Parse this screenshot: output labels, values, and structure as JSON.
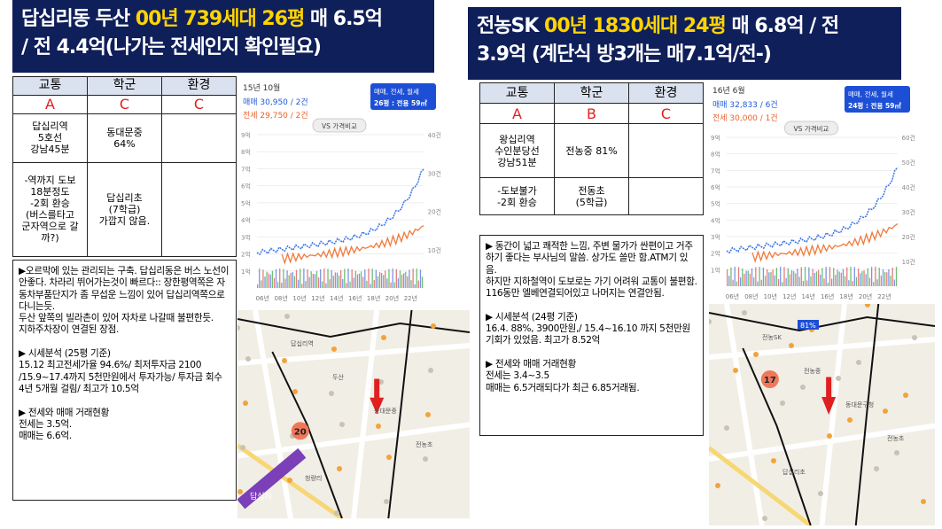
{
  "listings": [
    {
      "title": [
        "답십리동 두산 ",
        "00년 739세대 26평",
        " 매 6.5억",
        "/ 전 4.4억(나가는 전세인지 확인필요)"
      ],
      "table": {
        "headers": [
          "교통",
          "학군",
          "환경"
        ],
        "grades": [
          "A",
          "C",
          "C"
        ],
        "rows": [
          [
            "답십리역\n5호선\n강남45분",
            "동대문중\n64%",
            null
          ],
          [
            "-역까지 도보\n18분정도\n-2회 환승\n(버스를타고\n군자역으로 갈\n까?)",
            "답십리초\n(7학급)\n가깝지 않음.",
            null
          ]
        ]
      },
      "notes": "▶오르막에 있는 관리되는 구축. 답십리동은 버스 노선이 안좋다. 차라리 뛰어가는것이 빠르다:: 장한평역쪽은 자동차부품단지가 좀 무섭운 느낌이 있어 답십리역쪽으로다니는듯.\n두산 앞쪽의 빌라촌이 있어 자차로 나갈때 불편한듯.\n지하주차장이 연결된 장점.\n\n▶ 시세분석 (25평 기준)\n15.12  최고전세가율 94.6%/ 최저투자금 2100 /15.9~17.4까지 5천만원에서 투자가능/ 투자금 회수 4년 5개월 걸림/ 최고가 10.5억\n\n▶ 전세와 매매 거래현황\n전세는 3.5억.\n매매는 6.6억.",
      "chart": {
        "date": "15년 10월",
        "sale": "매매 30,950 / 2건",
        "rent": "전세 29,750 / 2건",
        "filter": "매매, 전세, 월세",
        "size": "26평 : 전용 59㎡",
        "compare": "VS 가격비교",
        "yleft": [
          "9억",
          "8억",
          "7억",
          "6억",
          "5억",
          "4억",
          "3억",
          "2억",
          "1억"
        ],
        "yright": [
          "40건",
          "30건",
          "20건",
          "10건"
        ],
        "xlabels": [
          "06년",
          "08년",
          "10년",
          "12년",
          "14년",
          "16년",
          "18년",
          "20년",
          "22년"
        ]
      },
      "map": {
        "badge": "20",
        "station": "답십리",
        "labels": [
          "답십리역",
          "두산",
          "동대문중",
          "전농초",
          "청량리"
        ]
      }
    },
    {
      "title": [
        "전농SK ",
        "00년 1830세대 24평",
        " 매 6.8억 / 전",
        "3.9억 (계단식 방3개는 매7.1억/전-)"
      ],
      "table": {
        "headers": [
          "교통",
          "학군",
          "환경"
        ],
        "grades": [
          "A",
          "B",
          "C"
        ],
        "rows": [
          [
            "왕십리역\n수인분당선\n강남51분",
            "전농중 81%",
            null
          ],
          [
            "-도보불가\n-2회 환승",
            "전동초\n(5학급)",
            null
          ]
        ]
      },
      "notes": "▶ 동간이 넓고 쾌적한 느낌, 주변 물가가 싼편이고 거주하기 좋다는 부사님의 말씀. 상가도 쓸만 함.ATM기 있음.\n하지만 지하철역이 도보로는 가기 어려워 교통이 불편함.\n116동만 엘베연결되어있고 나머지는 연결안됨.\n\n▶ 시세분석 (24평 기준)\n16.4. 88%, 3900만원,/ 15.4~16.10 까지 5천만원 기회가 있었음. 최고가 8.52억\n\n▶ 전세와 매매 거래현황\n전세는 3.4~3.5\n매매는 6.5거래되다가 최근 6.85거래됨.",
      "chart": {
        "date": "16년 6월",
        "sale": "매매 32,833 / 6건",
        "rent": "전세 30,000 / 1건",
        "filter": "매매, 전세, 월세",
        "size": "24평 : 전용 59㎡",
        "compare": "VS 가격비교",
        "yleft": [
          "9억",
          "8억",
          "7억",
          "6억",
          "5억",
          "4억",
          "3억",
          "2억",
          "1억"
        ],
        "yright": [
          "60건",
          "50건",
          "40건",
          "30건",
          "20건",
          "10건"
        ],
        "xlabels": [
          "06년",
          "08년",
          "10년",
          "12년",
          "14년",
          "16년",
          "18년",
          "20년",
          "22년"
        ]
      },
      "map": {
        "badge": "17",
        "station": "81%",
        "labels": [
          "전농SK",
          "전농중",
          "동대문구청",
          "전농초",
          "답십리초"
        ]
      }
    }
  ]
}
